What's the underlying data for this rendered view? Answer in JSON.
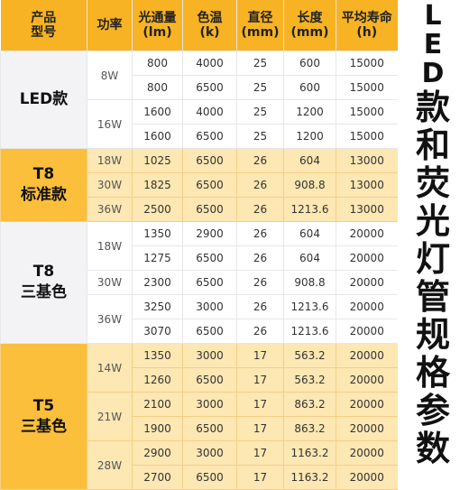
{
  "headers": [
    {
      "top": "产品",
      "bottom": "型号"
    },
    {
      "top": "功率",
      "bottom": ""
    },
    {
      "top": "光通量",
      "bottom": "(lm)"
    },
    {
      "top": "色温",
      "bottom": "(k)"
    },
    {
      "top": "直径",
      "bottom": "(mm)"
    },
    {
      "top": "长度",
      "bottom": "(mm)"
    },
    {
      "top": "平均寿命",
      "bottom": "(h)"
    }
  ],
  "side_title": "LED款和荧光灯管规格参数",
  "theme": {
    "header_bg": "#f7b324",
    "band_light": "#fde7b3",
    "band_dark": "#fbbf3c"
  },
  "categories": [
    {
      "name": [
        "LED款"
      ],
      "band": "white",
      "groups": [
        {
          "power": "8W",
          "rows": [
            {
              "lumen": "800",
              "cct": "4000",
              "diameter": "25",
              "length": "600",
              "life": "15000"
            },
            {
              "lumen": "800",
              "cct": "6500",
              "diameter": "25",
              "length": "600",
              "life": "15000"
            }
          ]
        },
        {
          "power": "16W",
          "rows": [
            {
              "lumen": "1600",
              "cct": "4000",
              "diameter": "25",
              "length": "1200",
              "life": "15000"
            },
            {
              "lumen": "1600",
              "cct": "6500",
              "diameter": "25",
              "length": "1200",
              "life": "15000"
            }
          ]
        }
      ]
    },
    {
      "name": [
        "T8",
        "标准款"
      ],
      "band": "yellow",
      "groups": [
        {
          "power": "18W",
          "rows": [
            {
              "lumen": "1025",
              "cct": "6500",
              "diameter": "26",
              "length": "604",
              "life": "13000"
            }
          ]
        },
        {
          "power": "30W",
          "rows": [
            {
              "lumen": "1825",
              "cct": "6500",
              "diameter": "26",
              "length": "908.8",
              "life": "13000"
            }
          ]
        },
        {
          "power": "36W",
          "rows": [
            {
              "lumen": "2500",
              "cct": "6500",
              "diameter": "26",
              "length": "1213.6",
              "life": "13000"
            }
          ]
        }
      ]
    },
    {
      "name": [
        "T8",
        "三基色"
      ],
      "band": "white",
      "groups": [
        {
          "power": "18W",
          "rows": [
            {
              "lumen": "1350",
              "cct": "2900",
              "diameter": "26",
              "length": "604",
              "life": "20000"
            },
            {
              "lumen": "1275",
              "cct": "6500",
              "diameter": "26",
              "length": "604",
              "life": "20000"
            }
          ]
        },
        {
          "power": "30W",
          "rows": [
            {
              "lumen": "2300",
              "cct": "6500",
              "diameter": "26",
              "length": "908.8",
              "life": "20000"
            }
          ]
        },
        {
          "power": "36W",
          "rows": [
            {
              "lumen": "3250",
              "cct": "3000",
              "diameter": "26",
              "length": "1213.6",
              "life": "20000"
            },
            {
              "lumen": "3070",
              "cct": "6500",
              "diameter": "26",
              "length": "1213.6",
              "life": "20000"
            }
          ]
        }
      ]
    },
    {
      "name": [
        "T5",
        "三基色"
      ],
      "band": "yellow",
      "groups": [
        {
          "power": "14W",
          "rows": [
            {
              "lumen": "1350",
              "cct": "3000",
              "diameter": "17",
              "length": "563.2",
              "life": "20000"
            },
            {
              "lumen": "1260",
              "cct": "6500",
              "diameter": "17",
              "length": "563.2",
              "life": "20000"
            }
          ]
        },
        {
          "power": "21W",
          "rows": [
            {
              "lumen": "2100",
              "cct": "3000",
              "diameter": "17",
              "length": "863.2",
              "life": "20000"
            },
            {
              "lumen": "1900",
              "cct": "6500",
              "diameter": "17",
              "length": "863.2",
              "life": "20000"
            }
          ]
        },
        {
          "power": "28W",
          "rows": [
            {
              "lumen": "2900",
              "cct": "3000",
              "diameter": "17",
              "length": "1163.2",
              "life": "20000"
            },
            {
              "lumen": "2700",
              "cct": "6500",
              "diameter": "17",
              "length": "1163.2",
              "life": "20000"
            }
          ]
        }
      ]
    }
  ]
}
